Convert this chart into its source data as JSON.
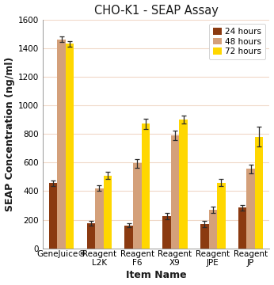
{
  "title": "CHO-K1 - SEAP Assay",
  "xlabel": "Item Name",
  "ylabel": "SEAP Concentration (ng/ml)",
  "categories": [
    "GeneJuice®",
    "Reagent\nL2K",
    "Reagent\nF6",
    "Reagent\nX9",
    "Reagent\nJPE",
    "Reagent\nJP"
  ],
  "series": {
    "24 hours": {
      "values": [
        455,
        175,
        160,
        225,
        170,
        285
      ],
      "errors": [
        20,
        15,
        15,
        20,
        20,
        20
      ],
      "color": "#8B3A10"
    },
    "48 hours": {
      "values": [
        1460,
        420,
        595,
        790,
        270,
        555
      ],
      "errors": [
        20,
        20,
        30,
        35,
        20,
        30
      ],
      "color": "#D4A07A"
    },
    "72 hours": {
      "values": [
        1430,
        510,
        870,
        900,
        460,
        780
      ],
      "errors": [
        20,
        25,
        35,
        30,
        25,
        70
      ],
      "color": "#FFD700"
    }
  },
  "ylim": [
    0,
    1600
  ],
  "yticks": [
    0,
    200,
    400,
    600,
    800,
    1000,
    1200,
    1400,
    1600
  ],
  "bg_color": "#FFFFFF",
  "plot_bg_color": "#FFFFFF",
  "grid_color": "#F0D8C8",
  "bar_width": 0.22,
  "title_fontsize": 10.5,
  "axis_label_fontsize": 9,
  "tick_fontsize": 7.5,
  "legend_fontsize": 7.5
}
